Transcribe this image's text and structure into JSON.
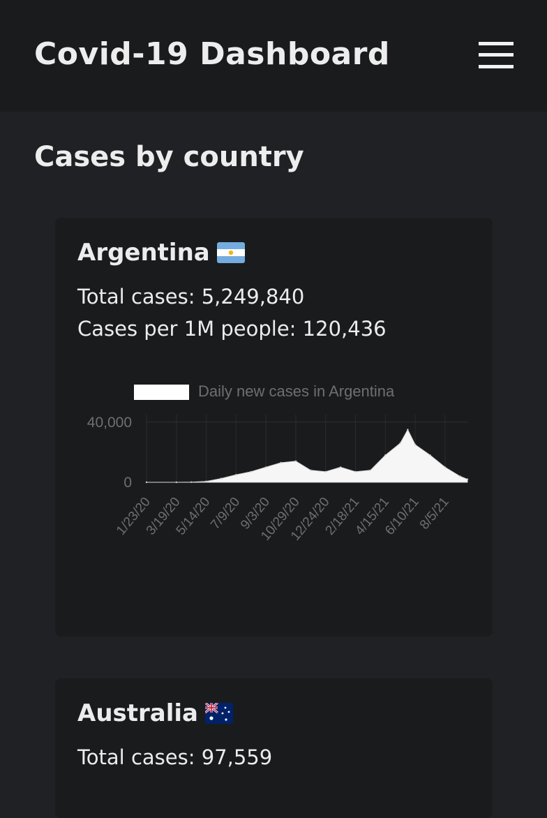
{
  "app": {
    "title": "Covid-19 Dashboard"
  },
  "icons": {
    "menu": "hamburger-menu-icon"
  },
  "section": {
    "title": "Cases by country"
  },
  "colors": {
    "page_bg": "#202124",
    "card_bg": "#1a1b1d",
    "text": "#ececec",
    "chart_fill": "#ffffff",
    "chart_label": "#6f6f6f"
  },
  "cards": [
    {
      "country": "Argentina",
      "flag": "argentina-flag",
      "total_cases_label": "Total cases: 5,249,840",
      "per_million_label": "Cases per 1M people: 120,436"
    },
    {
      "country": "Australia",
      "flag": "australia-flag",
      "total_cases_label": "Total cases: 97,559"
    }
  ],
  "chart_data": {
    "type": "area",
    "legend": "Daily new cases in Argentina",
    "legend_position": "top",
    "y_ticks": [
      0,
      40000
    ],
    "y_tick_labels": [
      "0",
      "40,000"
    ],
    "ylim": [
      0,
      45000
    ],
    "x_tick_labels": [
      "1/23/20",
      "3/19/20",
      "5/14/20",
      "7/9/20",
      "9/3/20",
      "10/29/20",
      "12/24/20",
      "2/18/21",
      "4/15/21",
      "6/10/21",
      "8/5/21"
    ],
    "x": [
      "2020-01-23",
      "2020-03-19",
      "2020-04-16",
      "2020-05-14",
      "2020-06-11",
      "2020-07-09",
      "2020-08-06",
      "2020-09-03",
      "2020-10-01",
      "2020-10-29",
      "2020-11-26",
      "2020-12-24",
      "2021-01-21",
      "2021-02-18",
      "2021-03-18",
      "2021-04-15",
      "2021-05-13",
      "2021-05-27",
      "2021-06-10",
      "2021-07-08",
      "2021-08-05",
      "2021-09-02",
      "2021-09-16"
    ],
    "values": [
      0,
      0,
      100,
      600,
      2500,
      5000,
      7000,
      10000,
      13000,
      14000,
      8000,
      7000,
      10000,
      7000,
      8000,
      18000,
      26000,
      35000,
      25000,
      18000,
      10000,
      4000,
      2000
    ],
    "grid": true
  }
}
